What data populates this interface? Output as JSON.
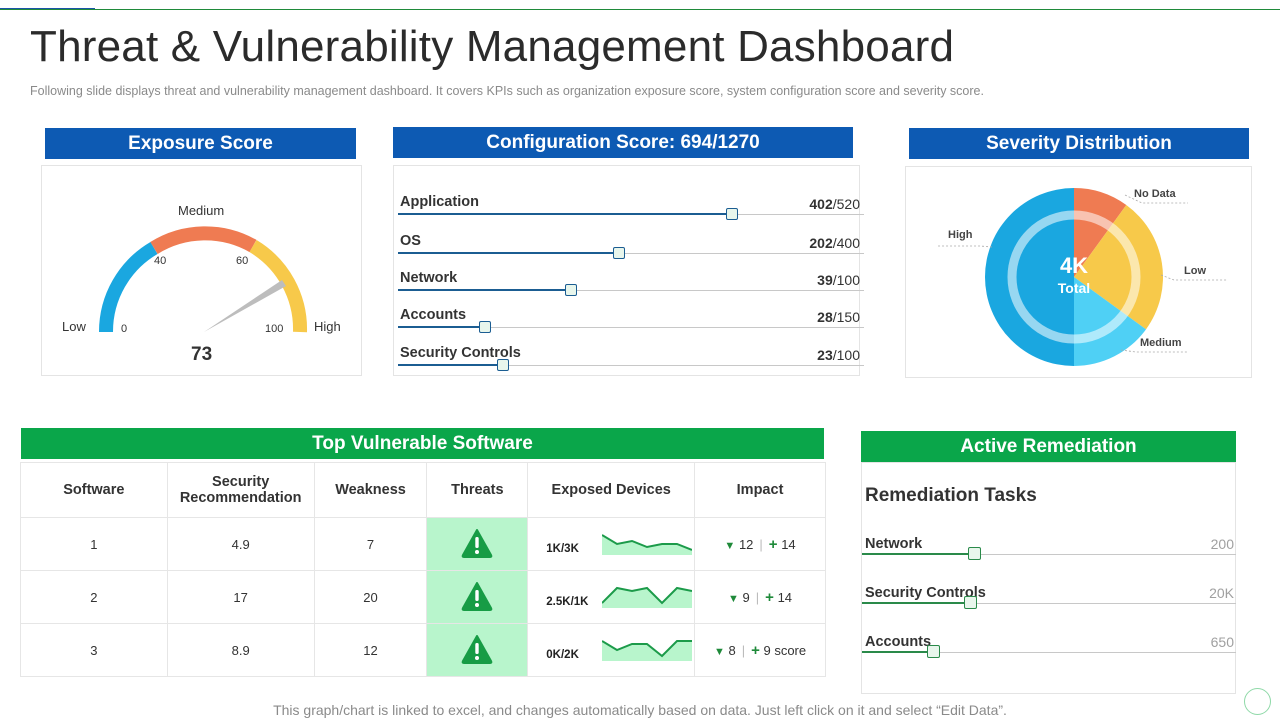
{
  "page": {
    "title": "Threat & Vulnerability Management Dashboard",
    "subtitle": "Following slide displays threat and vulnerability management dashboard. It covers KPIs such as organization exposure score, system configuration score and severity score.",
    "footer": "This graph/chart is linked to excel, and changes automatically based on data. Just left click on it and select “Edit Data”."
  },
  "colors": {
    "blue": "#0d5ab3",
    "green": "#0aa64a",
    "orange": "#ef7b52",
    "yellow": "#f7c94a",
    "sky": "#1aa7e0",
    "light_sky": "#4fd0f5"
  },
  "exposure": {
    "header": "Exposure Score",
    "labels": {
      "low": "Low",
      "medium": "Medium",
      "high": "High"
    },
    "ticks": [
      "0",
      "40",
      "60",
      "100"
    ],
    "score": "73",
    "score_value": 73
  },
  "configuration": {
    "header": "Configuration Score: 694/1270",
    "items": [
      {
        "label": "Application",
        "value": "402",
        "total": "/520",
        "fraction": 0.773
      },
      {
        "label": "OS",
        "value": "202",
        "total": "/400",
        "fraction": 0.505
      },
      {
        "label": "Network",
        "value": "39",
        "total": "/100",
        "fraction": 0.39
      },
      {
        "label": "Accounts",
        "value": "28",
        "total": "/150",
        "fraction": 0.187
      },
      {
        "label": "Security Controls",
        "value": "23",
        "total": "/100",
        "fraction": 0.23
      }
    ]
  },
  "severity": {
    "header": "Severity Distribution",
    "center_value": "4K",
    "center_label": "Total",
    "slices": [
      {
        "label": "No Data",
        "fraction": 0.1,
        "color": "#ef7b52"
      },
      {
        "label": "Low",
        "fraction": 0.25,
        "color": "#f7c94a"
      },
      {
        "label": "Medium",
        "fraction": 0.15,
        "color": "#4fd0f5"
      },
      {
        "label": "High",
        "fraction": 0.5,
        "color": "#1aa7e0"
      }
    ]
  },
  "software": {
    "header": "Top Vulnerable Software",
    "columns": [
      "Software",
      "Security Recommendation",
      "Weakness",
      "Threats",
      "Exposed Devices",
      "Impact"
    ],
    "rows": [
      {
        "software": "1",
        "recommendation": "4.9",
        "weakness": "7",
        "devices": "1K/3K",
        "down": "12",
        "up": "14",
        "spark": [
          6,
          3,
          4,
          2,
          3,
          3,
          1
        ]
      },
      {
        "software": "2",
        "recommendation": "17",
        "weakness": "20",
        "devices": "2.5K/1K",
        "down": "9",
        "up": "14",
        "spark": [
          1,
          6,
          5,
          6,
          1,
          6,
          5
        ]
      },
      {
        "software": "3",
        "recommendation": "8.9",
        "weakness": "12",
        "devices": "0K/2K",
        "down": "8",
        "up": "9 score",
        "spark": [
          6,
          3,
          5,
          5,
          1,
          6,
          6
        ]
      }
    ]
  },
  "remediation": {
    "header": "Active Remediation",
    "title": "Remediation Tasks",
    "items": [
      {
        "label": "Network",
        "value": "200",
        "fraction": 0.3
      },
      {
        "label": "Security Controls",
        "value": "20K",
        "fraction": 0.29
      },
      {
        "label": "Accounts",
        "value": "650",
        "fraction": 0.19
      }
    ]
  }
}
